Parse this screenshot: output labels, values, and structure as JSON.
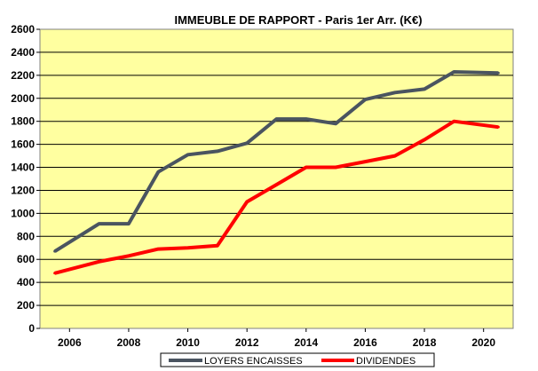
{
  "chart_data": {
    "type": "line",
    "title": "IMMEUBLE DE RAPPORT  - Paris 1er Arr. (K€)",
    "xlabel": "",
    "ylabel": "",
    "x": [
      2005.5,
      2007,
      2008,
      2009,
      2010,
      2011,
      2012,
      2013,
      2014,
      2015,
      2016,
      2017,
      2018,
      2019,
      2020.5
    ],
    "xlim": [
      2005,
      2021
    ],
    "ylim": [
      0,
      2600
    ],
    "x_ticks": [
      "2006",
      "2008",
      "2010",
      "2012",
      "2014",
      "2016",
      "2018",
      "2020"
    ],
    "y_ticks": [
      "0",
      "200",
      "400",
      "600",
      "800",
      "1000",
      "1200",
      "1400",
      "1600",
      "1800",
      "2000",
      "2200",
      "2400",
      "2600"
    ],
    "grid": true,
    "legend_position": "bottom",
    "plot_background": "#ffffa0",
    "page_background": "#ffffff",
    "series": [
      {
        "name": "LOYERS ENCAISSES",
        "color": "#4a5460",
        "values": [
          670,
          910,
          910,
          1360,
          1510,
          1540,
          1610,
          1820,
          1820,
          1780,
          1990,
          2050,
          2080,
          2230,
          2220
        ]
      },
      {
        "name": "DIVIDENDES",
        "color": "#ff0000",
        "values": [
          480,
          580,
          630,
          690,
          700,
          720,
          1100,
          1250,
          1400,
          1400,
          1450,
          1500,
          1640,
          1800,
          1750
        ]
      }
    ]
  }
}
